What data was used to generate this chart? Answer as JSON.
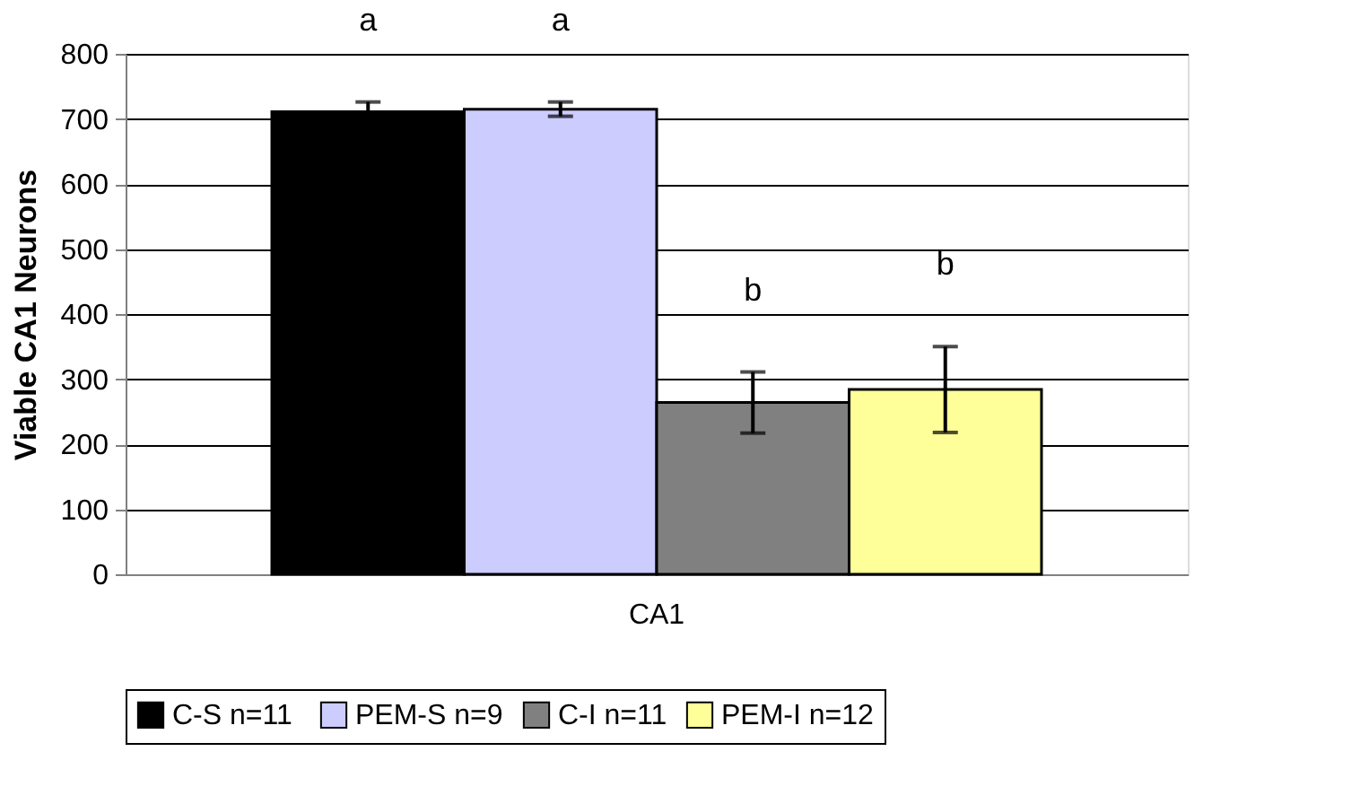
{
  "chart_data": {
    "type": "bar",
    "ylabel": "Viable CA1 Neurons",
    "categories": [
      "CA1"
    ],
    "series": [
      {
        "name": "C-S  n=11",
        "color": "#000000",
        "values": [
          711
        ],
        "errors": [
          15
        ]
      },
      {
        "name": "PEM-S n=9",
        "color": "#ccccff",
        "values": [
          715
        ],
        "errors": [
          11
        ]
      },
      {
        "name": "C-I n=11",
        "color": "#808080",
        "values": [
          264
        ],
        "errors": [
          47
        ]
      },
      {
        "name": "PEM-I n=12",
        "color": "#ffff99",
        "values": [
          284
        ],
        "errors": [
          66
        ]
      }
    ],
    "annotations": [
      "a",
      "a",
      "b",
      "b"
    ],
    "ylim": [
      0,
      800
    ],
    "yticks": [
      0,
      100,
      200,
      300,
      400,
      500,
      600,
      700,
      800
    ],
    "grid": "y",
    "legend": "bottom"
  }
}
